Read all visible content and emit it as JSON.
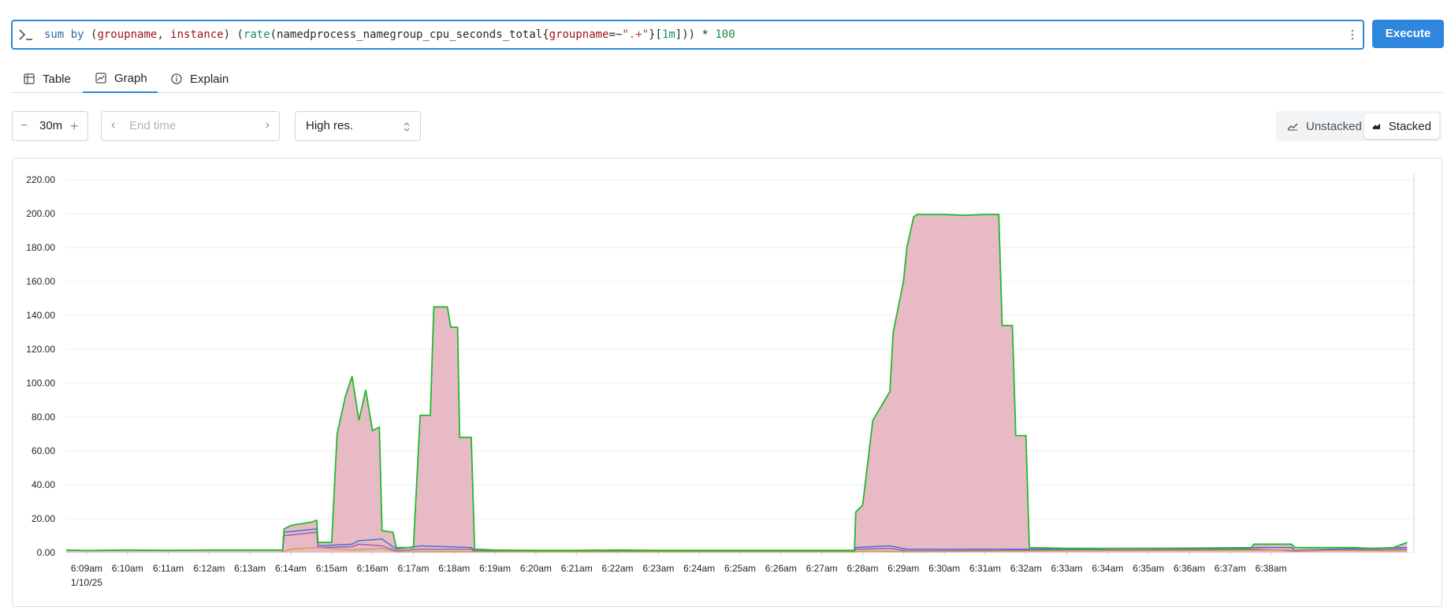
{
  "query": {
    "tokens": [
      {
        "t": "sum",
        "c": "tk-kw"
      },
      {
        "t": " "
      },
      {
        "t": "by",
        "c": "tk-kw"
      },
      {
        "t": " ("
      },
      {
        "t": "groupname",
        "c": "tk-lbl"
      },
      {
        "t": ", "
      },
      {
        "t": "instance",
        "c": "tk-lbl"
      },
      {
        "t": ") ("
      },
      {
        "t": "rate",
        "c": "tk-fn"
      },
      {
        "t": "(namedprocess_namegroup_cpu_seconds_total{"
      },
      {
        "t": "groupname",
        "c": "tk-lbl"
      },
      {
        "t": "=~"
      },
      {
        "t": "\".+\"",
        "c": "tk-str"
      },
      {
        "t": "}["
      },
      {
        "t": "1m",
        "c": "tk-fn"
      },
      {
        "t": "])) * "
      },
      {
        "t": "100",
        "c": "tk-num"
      }
    ],
    "execute_label": "Execute"
  },
  "tabs": [
    {
      "label": "Table",
      "active": false
    },
    {
      "label": "Graph",
      "active": true
    },
    {
      "label": "Explain",
      "active": false
    }
  ],
  "controls": {
    "range_value": "30m",
    "end_time_placeholder": "End time",
    "resolution_value": "High res.",
    "unstacked_label": "Unstacked",
    "stacked_label": "Stacked",
    "stacked_active": true
  },
  "colors": {
    "accent": "#2f86dd",
    "main_fill": "#e7b6c2",
    "top_line": "#1fba2c",
    "series_lines": [
      "#3b6bd6",
      "#9b59b6",
      "#d24b8c",
      "#c9a23c",
      "#5a9e6f",
      "#c97a5a"
    ]
  },
  "chart_data": {
    "type": "area",
    "stacked": true,
    "ylim": [
      0,
      220
    ],
    "y_ticks": [
      "0.00",
      "20.00",
      "40.00",
      "60.00",
      "80.00",
      "100.00",
      "120.00",
      "140.00",
      "160.00",
      "180.00",
      "200.00",
      "220.00"
    ],
    "x_ticks": [
      "6:09am",
      "6:10am",
      "6:11am",
      "6:12am",
      "6:13am",
      "6:14am",
      "6:15am",
      "6:16am",
      "6:17am",
      "6:18am",
      "6:19am",
      "6:20am",
      "6:21am",
      "6:22am",
      "6:23am",
      "6:24am",
      "6:25am",
      "6:26am",
      "6:27am",
      "6:28am",
      "6:29am",
      "6:30am",
      "6:31am",
      "6:32am",
      "6:33am",
      "6:34am",
      "6:35am",
      "6:36am",
      "6:37am",
      "6:38am"
    ],
    "x_date_label": "1/10/25",
    "grid": true,
    "series": [
      {
        "points": [
          [
            "6:08:30",
            1.5
          ],
          [
            "6:09:00",
            1.2
          ],
          [
            "6:10:00",
            1.5
          ],
          [
            "6:11:00",
            1.3
          ],
          [
            "6:12:00",
            1.5
          ],
          [
            "6:13:00",
            1.5
          ],
          [
            "6:13:48",
            1.5
          ],
          [
            "6:13:50",
            14
          ],
          [
            "6:14:00",
            16
          ],
          [
            "6:14:30",
            18
          ],
          [
            "6:14:38",
            19
          ],
          [
            "6:14:40",
            6
          ],
          [
            "6:15:00",
            6
          ],
          [
            "6:15:08",
            70
          ],
          [
            "6:15:20",
            92
          ],
          [
            "6:15:30",
            104
          ],
          [
            "6:15:40",
            78
          ],
          [
            "6:15:50",
            96
          ],
          [
            "6:16:00",
            72
          ],
          [
            "6:16:10",
            74
          ],
          [
            "6:16:14",
            13
          ],
          [
            "6:16:30",
            12
          ],
          [
            "6:16:35",
            3
          ],
          [
            "6:17:00",
            3
          ],
          [
            "6:17:10",
            81
          ],
          [
            "6:17:25",
            81
          ],
          [
            "6:17:30",
            145
          ],
          [
            "6:17:50",
            145
          ],
          [
            "6:17:55",
            133
          ],
          [
            "6:18:05",
            133
          ],
          [
            "6:18:08",
            68
          ],
          [
            "6:18:25",
            68
          ],
          [
            "6:18:30",
            2
          ],
          [
            "6:19:00",
            1.5
          ],
          [
            "6:20:00",
            1.3
          ],
          [
            "6:21:00",
            1.3
          ],
          [
            "6:22:00",
            1.5
          ],
          [
            "6:23:00",
            1.3
          ],
          [
            "6:24:00",
            1.3
          ],
          [
            "6:25:00",
            1.3
          ],
          [
            "6:26:00",
            1.3
          ],
          [
            "6:27:00",
            1.3
          ],
          [
            "6:27:48",
            1.3
          ],
          [
            "6:27:50",
            24
          ],
          [
            "6:28:00",
            28
          ],
          [
            "6:28:15",
            78
          ],
          [
            "6:28:40",
            95
          ],
          [
            "6:28:45",
            130
          ],
          [
            "6:29:00",
            160
          ],
          [
            "6:29:05",
            180
          ],
          [
            "6:29:15",
            198
          ],
          [
            "6:29:20",
            199.5
          ],
          [
            "6:30:00",
            199.5
          ],
          [
            "6:30:30",
            199
          ],
          [
            "6:31:00",
            199.5
          ],
          [
            "6:31:20",
            199.5
          ],
          [
            "6:31:25",
            134
          ],
          [
            "6:31:40",
            134
          ],
          [
            "6:31:45",
            69
          ],
          [
            "6:32:00",
            69
          ],
          [
            "6:32:05",
            3
          ],
          [
            "6:33:00",
            2.5
          ],
          [
            "6:35:00",
            2.5
          ],
          [
            "6:37:00",
            2.5
          ],
          [
            "6:37:30",
            2.5
          ],
          [
            "6:37:35",
            5
          ],
          [
            "6:38:30",
            5
          ],
          [
            "6:38:35",
            3
          ],
          [
            "6:39:00",
            3
          ],
          [
            "6:39:30",
            3
          ],
          [
            "6:40:00",
            3
          ],
          [
            "6:40:30",
            2.5
          ],
          [
            "6:41:00",
            3
          ],
          [
            "6:41:20",
            6
          ]
        ]
      }
    ]
  }
}
